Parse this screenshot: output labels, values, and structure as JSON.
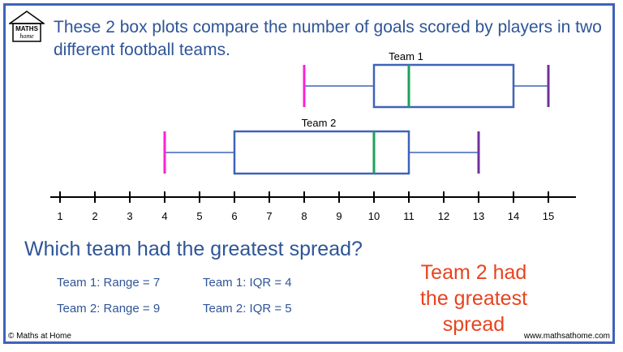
{
  "logo": {
    "line1": "MATHS",
    "line2": "home"
  },
  "title": "These 2 box plots compare the number of goals scored by players in two different football teams.",
  "question": "Which team had the greatest spread?",
  "stats": {
    "team1_range": "Team 1: Range = 7",
    "team1_iqr": "Team 1: IQR = 4",
    "team2_range": "Team 2: Range = 9",
    "team2_iqr": "Team 2: IQR = 5"
  },
  "answer": [
    "Team 2 had",
    "the greatest",
    "spread"
  ],
  "footer": {
    "left": "© Maths at Home",
    "right": "www.mathsathome.com"
  },
  "colors": {
    "frame": "#3f63b9",
    "box": "#3f63b9",
    "whisker": "#3f63b9",
    "median": "#1fa05a",
    "min_marker": "#ff1fd7",
    "max_marker": "#7030a0",
    "text": "#2f5597",
    "answer": "#e8431f"
  },
  "chart_data": {
    "type": "boxplot",
    "xlim": [
      1,
      15
    ],
    "x_ticks": [
      1,
      2,
      3,
      4,
      5,
      6,
      7,
      8,
      9,
      10,
      11,
      12,
      13,
      14,
      15
    ],
    "series": [
      {
        "name": "Team 1",
        "min": 8,
        "q1": 10,
        "median": 11,
        "q3": 14,
        "max": 15
      },
      {
        "name": "Team 2",
        "min": 4,
        "q1": 6,
        "median": 10,
        "q3": 11,
        "max": 13
      }
    ]
  }
}
